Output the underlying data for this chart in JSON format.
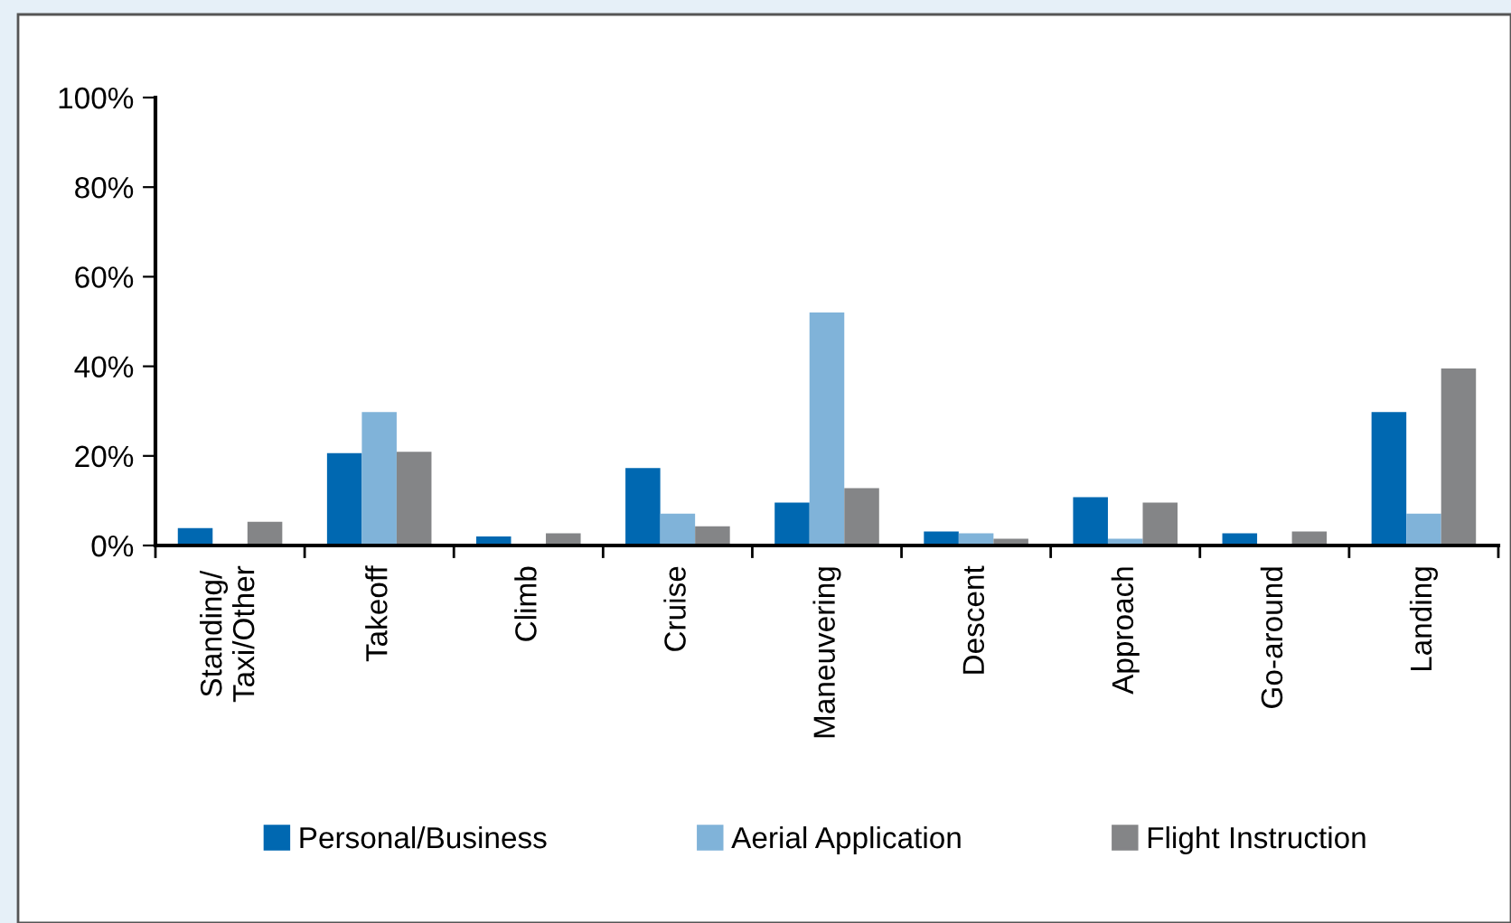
{
  "chart_data": {
    "type": "bar",
    "categories": [
      "Standing/\nTaxi/Other",
      "Takeoff",
      "Climb",
      "Cruise",
      "Maneuvering",
      "Descent",
      "Approach",
      "Go-around",
      "Landing"
    ],
    "series": [
      {
        "name": "Personal/Business",
        "color": "#0068b1",
        "values": [
          3.9,
          20.6,
          2.0,
          17.3,
          9.6,
          3.1,
          10.8,
          2.7,
          29.8
        ]
      },
      {
        "name": "Aerial Application",
        "color": "#80b3d9",
        "values": [
          0,
          29.8,
          0,
          7.1,
          52.0,
          2.7,
          1.5,
          0,
          7.1
        ]
      },
      {
        "name": "Flight Instruction",
        "color": "#848587",
        "values": [
          5.3,
          20.9,
          2.7,
          4.3,
          12.8,
          1.5,
          9.6,
          3.1,
          39.5
        ]
      }
    ],
    "ylim": [
      0,
      100
    ],
    "yticks": [
      {
        "value": 0,
        "label": "0%"
      },
      {
        "value": 20,
        "label": "20%"
      },
      {
        "value": 40,
        "label": "40%"
      },
      {
        "value": 60,
        "label": "60%"
      },
      {
        "value": 80,
        "label": "80%"
      },
      {
        "value": 100,
        "label": "100%"
      }
    ],
    "grid": false,
    "legend": "bottom"
  }
}
